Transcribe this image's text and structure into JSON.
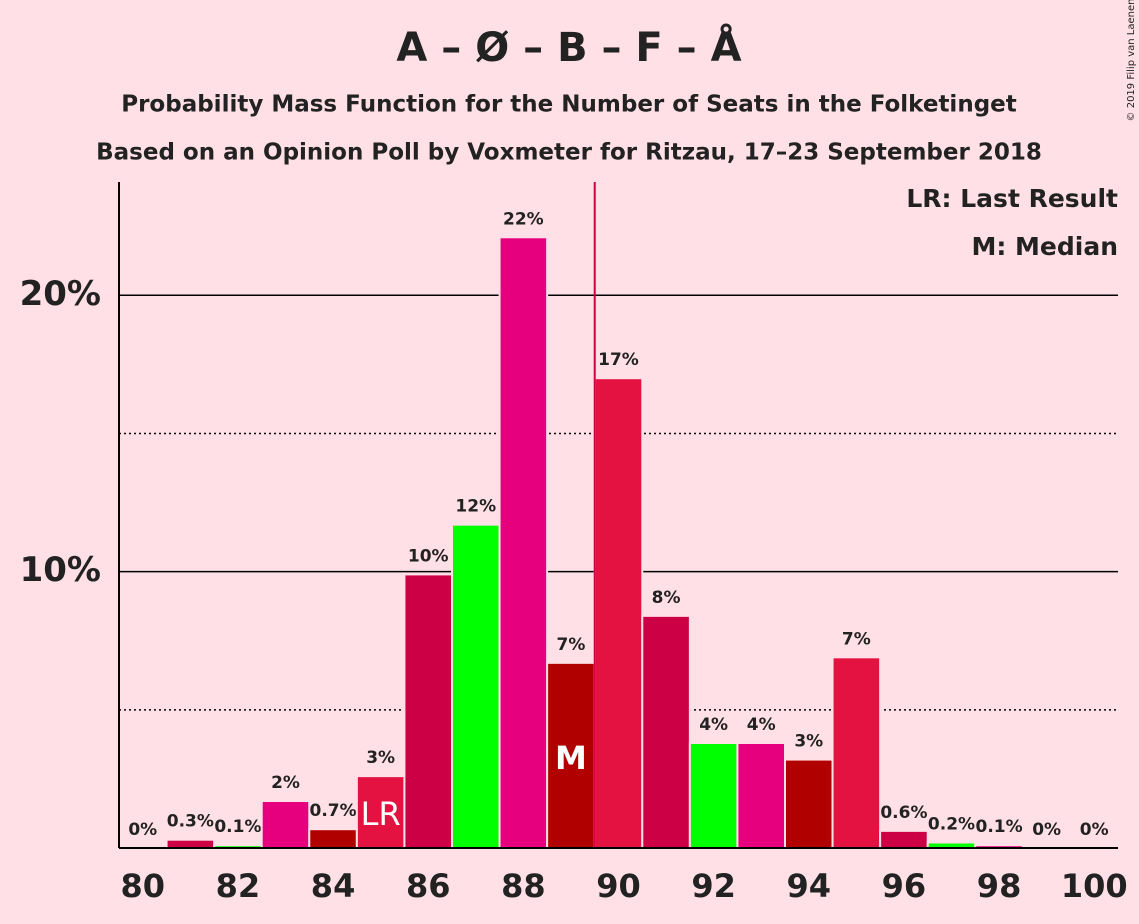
{
  "chart_data": {
    "type": "bar",
    "title": "A – Ø – B – F – Å",
    "subtitle": "Probability Mass Function for the Number of Seats in the Folketinget",
    "subtitle2": "Based on an Opinion Poll by Voxmeter for Ritzau, 17–23 September 2018",
    "credit": "© 2019 Filip van Laenen",
    "x": [
      80,
      81,
      82,
      83,
      84,
      85,
      86,
      87,
      88,
      89,
      90,
      91,
      92,
      93,
      94,
      95,
      96,
      97,
      98,
      99,
      100
    ],
    "values": [
      0,
      0.3,
      0.1,
      1.7,
      0.68,
      2.6,
      9.9,
      11.7,
      22.1,
      6.7,
      17.0,
      8.4,
      3.8,
      3.8,
      3.2,
      6.9,
      0.62,
      0.2,
      0.1,
      0,
      0
    ],
    "value_labels": [
      "0%",
      "0.3%",
      "0.1%",
      "2%",
      "0.7%",
      "3%",
      "10%",
      "12%",
      "22%",
      "7%",
      "17%",
      "8%",
      "4%",
      "4%",
      "3%",
      "7%",
      "0.6%",
      "0.2%",
      "0.1%",
      "0%",
      "0%"
    ],
    "colors": [
      "#e31240",
      "#cc0044",
      "#00ff00",
      "#e6007e",
      "#b00000",
      "#e31240",
      "#cc0044",
      "#00ff00",
      "#e6007e",
      "#b00000",
      "#e31240",
      "#cc0044",
      "#00ff00",
      "#e6007e",
      "#b00000",
      "#e31240",
      "#cc0044",
      "#00ff00",
      "#e6007e",
      "#b00000",
      "#e31240"
    ],
    "xlim": [
      79.5,
      100.5
    ],
    "xticks": [
      80,
      82,
      84,
      86,
      88,
      90,
      92,
      94,
      96,
      98,
      100
    ],
    "ylim": [
      0,
      24.1
    ],
    "yticks": [
      {
        "value": 10,
        "label": "10%"
      },
      {
        "value": 20,
        "label": "20%"
      }
    ],
    "minor_yticks": [
      5,
      15
    ],
    "grid": true,
    "reference_line": {
      "x": 89.5,
      "color": "#cc0044"
    },
    "last_result": {
      "x": 85,
      "label": "LR"
    },
    "median": {
      "x": 89,
      "label": "M"
    },
    "legend": [
      "LR: Last Result",
      "M: Median"
    ],
    "legend_position": "upper right"
  }
}
